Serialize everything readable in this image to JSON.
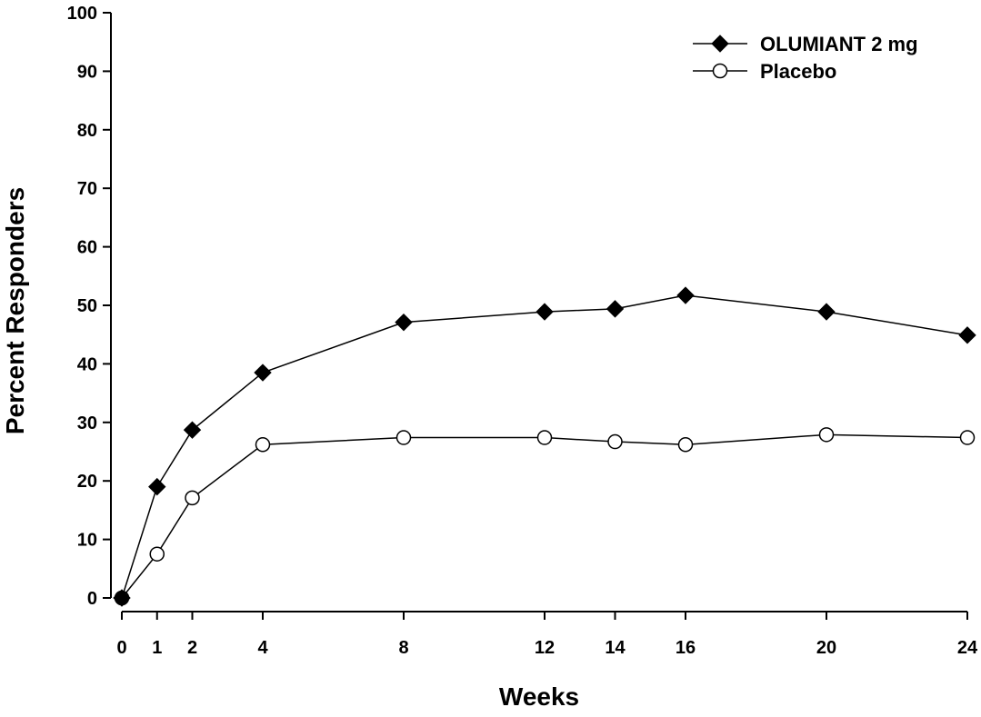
{
  "chart_data": {
    "type": "line",
    "title": "",
    "xlabel": "Weeks",
    "ylabel": "Percent Responders",
    "x": [
      0,
      1,
      2,
      4,
      8,
      12,
      14,
      16,
      20,
      24
    ],
    "x_tick_labels": [
      "0",
      "1",
      "2",
      "4",
      "8",
      "12",
      "14",
      "16",
      "20",
      "24"
    ],
    "xlim": [
      0,
      24
    ],
    "ylim": [
      0,
      100
    ],
    "y_ticks": [
      0,
      10,
      20,
      30,
      40,
      50,
      60,
      70,
      80,
      90,
      100
    ],
    "grid": false,
    "legend_position": "top-right",
    "series": [
      {
        "name": "OLUMIANT 2 mg",
        "marker": "filled-diamond",
        "color": "#000000",
        "values": [
          0,
          19,
          28.7,
          38.5,
          47.1,
          48.9,
          49.4,
          51.7,
          48.9,
          44.9
        ]
      },
      {
        "name": "Placebo",
        "marker": "open-circle",
        "color": "#000000",
        "values": [
          0,
          7.5,
          17.1,
          26.2,
          27.4,
          27.4,
          26.7,
          26.2,
          27.9,
          27.4
        ]
      }
    ]
  }
}
